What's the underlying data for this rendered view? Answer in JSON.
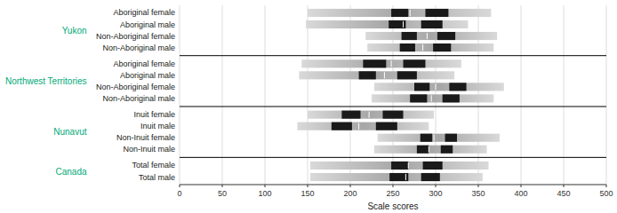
{
  "chart_data": {
    "type": "range_bar",
    "orientation": "horizontal",
    "xlabel": "Scale scores",
    "xlim": [
      0,
      500
    ],
    "xticks": [
      0,
      50,
      100,
      150,
      200,
      250,
      300,
      350,
      400,
      450,
      500
    ],
    "grid": true,
    "groups": [
      {
        "name": "Yukon",
        "color": "#00aa77",
        "rows": [
          {
            "label": "Aboriginal female",
            "range": [
              150,
              365
            ],
            "band_1": [
              248,
              268
            ],
            "band_2": [
              288,
              315
            ],
            "mean": 270
          },
          {
            "label": "Aboriginal male",
            "range": [
              148,
              338
            ],
            "band_1": [
              245,
              265
            ],
            "band_2": [
              283,
              308
            ],
            "mean": 262
          },
          {
            "label": "Non-Aboriginal female",
            "range": [
              218,
              372
            ],
            "band_1": [
              260,
              278
            ],
            "band_2": [
              302,
              323
            ],
            "mean": 290
          },
          {
            "label": "Non-Aboriginal male",
            "range": [
              220,
              368
            ],
            "band_1": [
              258,
              276
            ],
            "band_2": [
              297,
              318
            ],
            "mean": 285
          }
        ]
      },
      {
        "name": "Northwest Territories",
        "color": "#00aa77",
        "rows": [
          {
            "label": "Aboriginal female",
            "range": [
              143,
              330
            ],
            "band_1": [
              215,
              242
            ],
            "band_2": [
              262,
              288
            ],
            "mean": 248
          },
          {
            "label": "Aboriginal male",
            "range": [
              140,
              322
            ],
            "band_1": [
              210,
              230
            ],
            "band_2": [
              255,
              278
            ],
            "mean": 240
          },
          {
            "label": "Non-Aboriginal female",
            "range": [
              228,
              380
            ],
            "band_1": [
              275,
              293
            ],
            "band_2": [
              316,
              336
            ],
            "mean": 300
          },
          {
            "label": "Non-Aboriginal male",
            "range": [
              225,
              368
            ],
            "band_1": [
              270,
              290
            ],
            "band_2": [
              308,
              328
            ],
            "mean": 295
          }
        ]
      },
      {
        "name": "Nunavut",
        "color": "#00aa77",
        "rows": [
          {
            "label": "Inuit female",
            "range": [
              150,
              298
            ],
            "band_1": [
              190,
              212
            ],
            "band_2": [
              238,
              262
            ],
            "mean": 222
          },
          {
            "label": "Inuit male",
            "range": [
              138,
              292
            ],
            "band_1": [
              178,
              202
            ],
            "band_2": [
              230,
              255
            ],
            "mean": 210
          },
          {
            "label": "Non-Inuit female",
            "range": [
              232,
              375
            ],
            "band_1": [
              282,
              296
            ],
            "band_2": [
              311,
              325
            ],
            "mean": 298
          },
          {
            "label": "Non-Inuit male",
            "range": [
              228,
              360
            ],
            "band_1": [
              278,
              292
            ],
            "band_2": [
              306,
              320
            ],
            "mean": 292
          }
        ]
      },
      {
        "name": "Canada",
        "color": "#00aa77",
        "rows": [
          {
            "label": "Total female",
            "range": [
              153,
              362
            ],
            "band_1": [
              248,
              268
            ],
            "band_2": [
              285,
              308
            ],
            "mean": 268
          },
          {
            "label": "Total male",
            "range": [
              153,
              355
            ],
            "band_1": [
              246,
              268
            ],
            "band_2": [
              283,
              305
            ],
            "mean": 265
          }
        ]
      }
    ]
  }
}
